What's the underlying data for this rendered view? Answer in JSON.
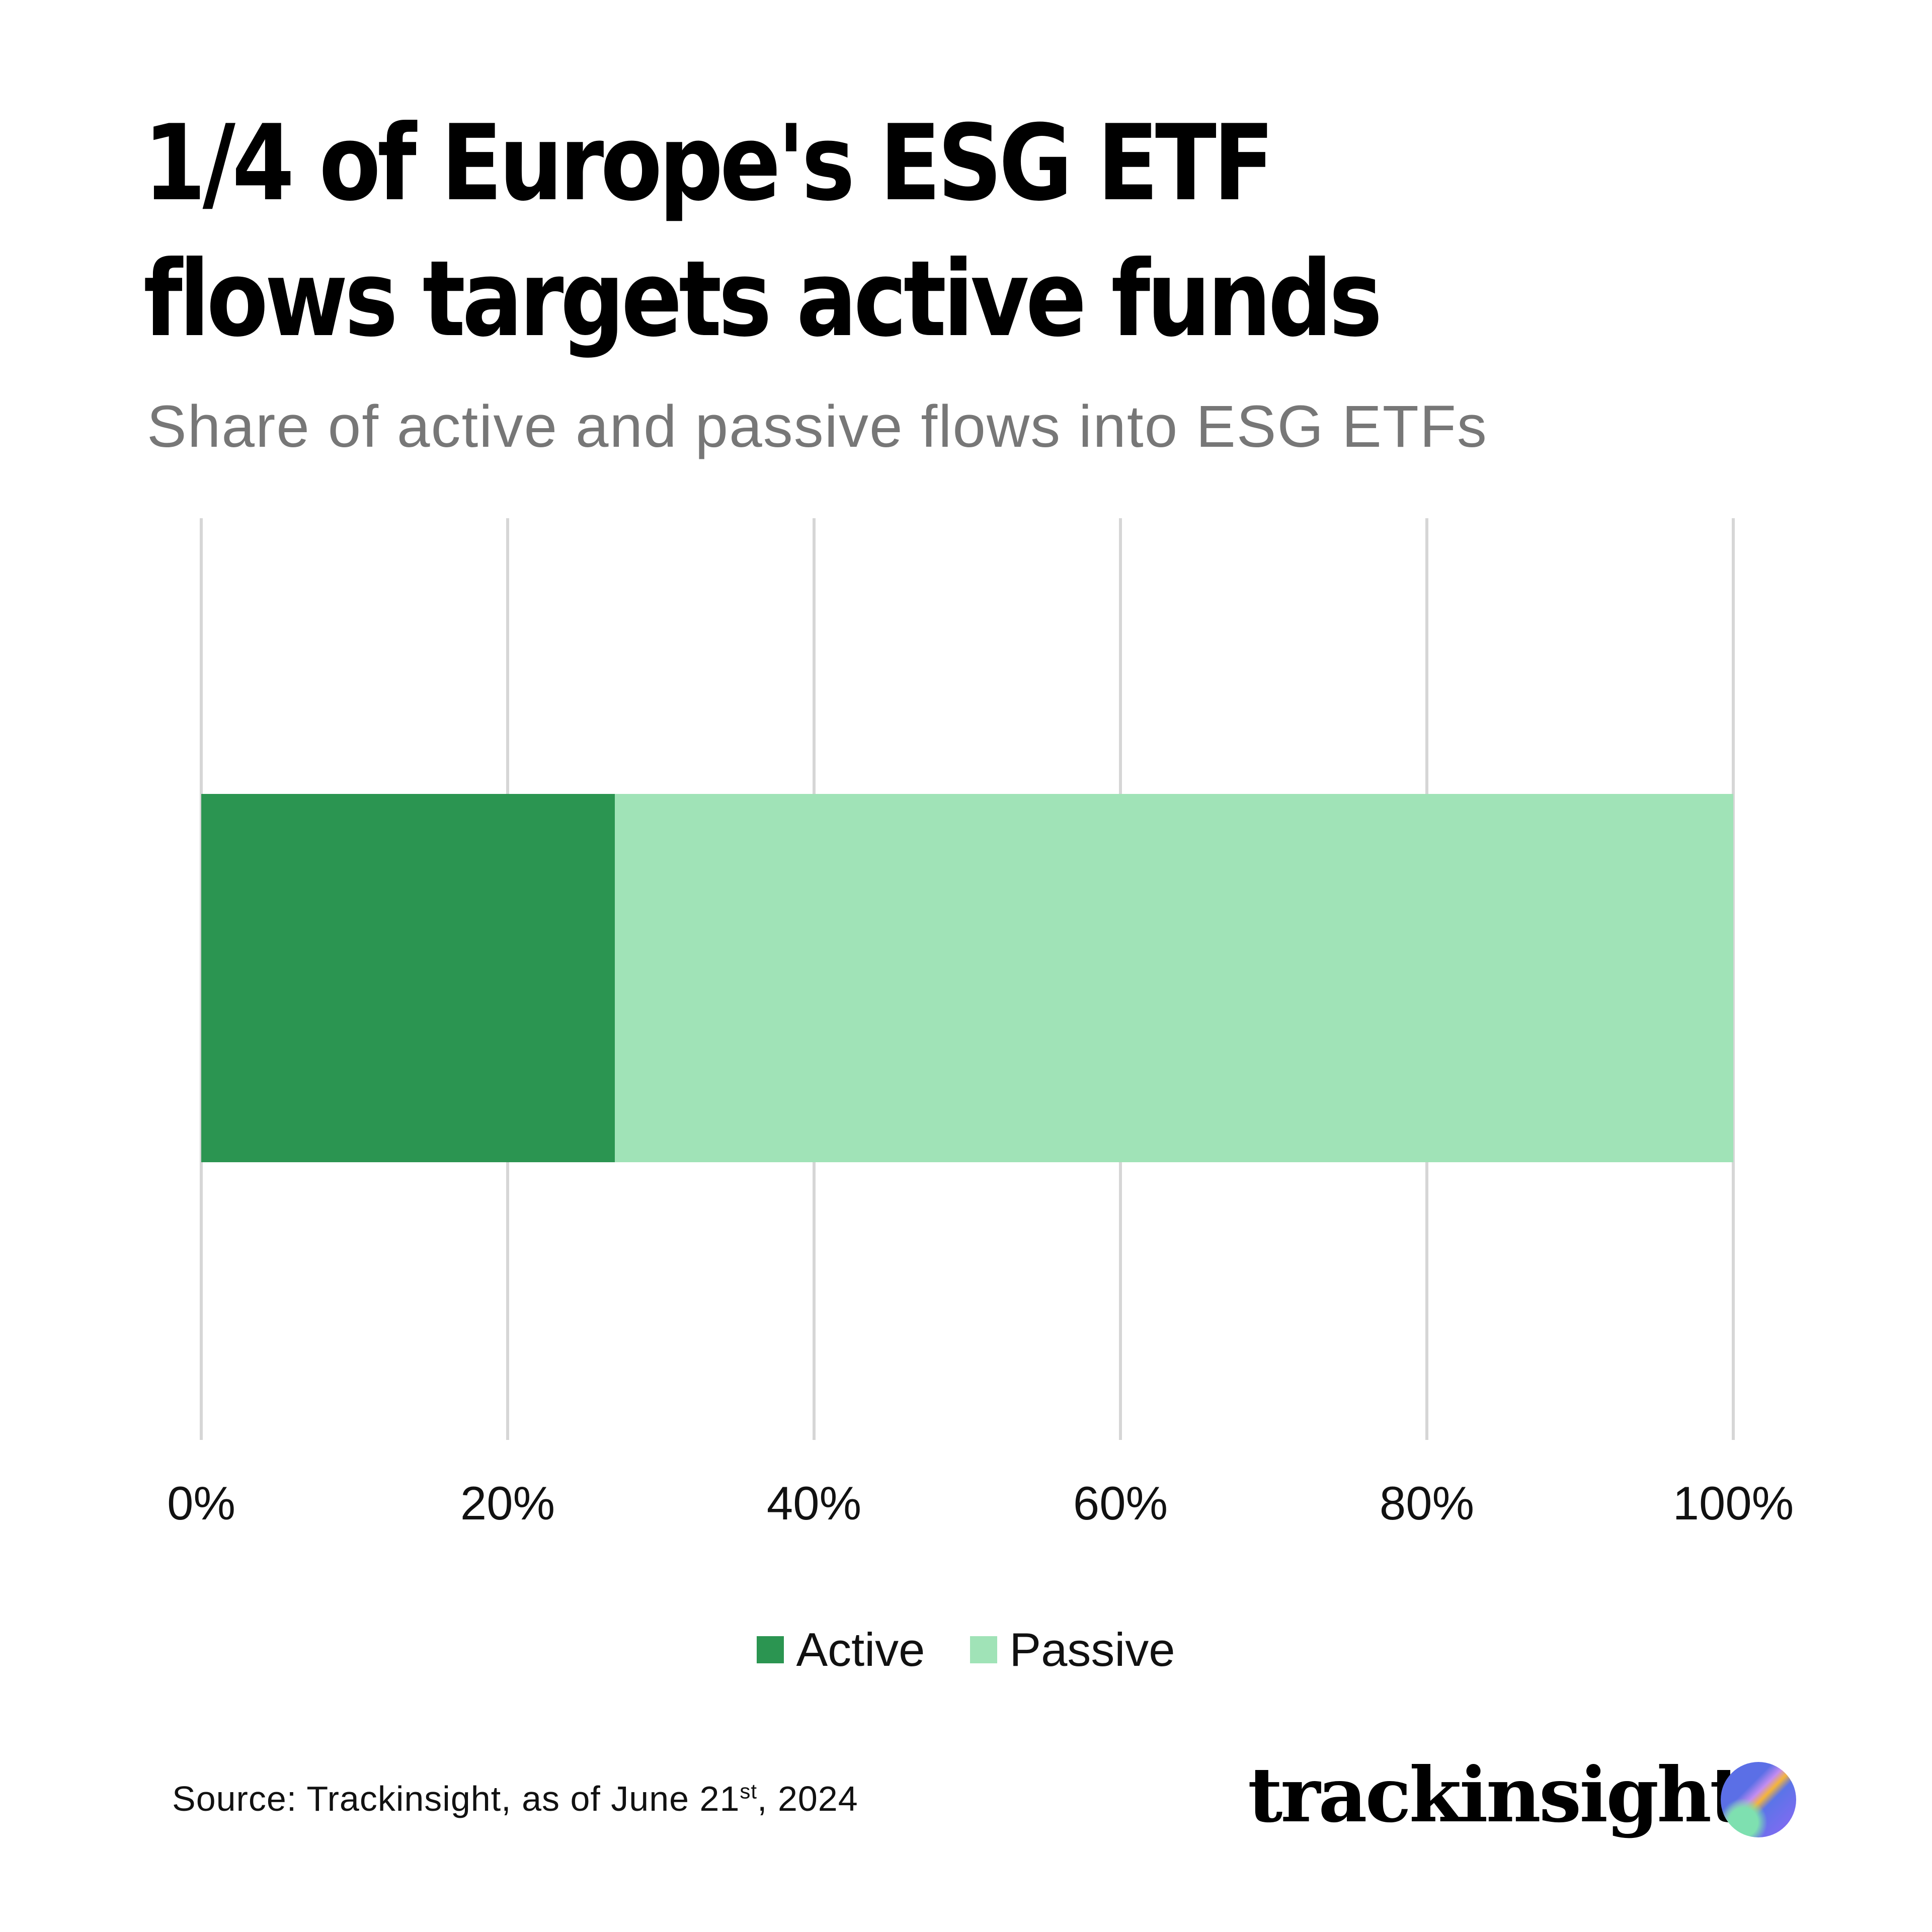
{
  "chart_data": {
    "type": "bar",
    "orientation": "horizontal",
    "stacked": true,
    "title": "1/4 of Europe's ESG ETF flows targets active funds",
    "title_lines": [
      "1/4 of Europe's ESG ETF",
      "flows targets active funds"
    ],
    "subtitle": "Share of active and passive flows into ESG ETFs",
    "categories": [
      ""
    ],
    "series": [
      {
        "name": "Active",
        "values": [
          27
        ],
        "color": "#2b9551"
      },
      {
        "name": "Passive",
        "values": [
          73
        ],
        "color": "#a0e3b7"
      }
    ],
    "xlim": [
      0,
      100
    ],
    "x_ticks": [
      "0%",
      "20%",
      "40%",
      "60%",
      "80%",
      "100%"
    ],
    "grid": true,
    "legend": "bottom-center"
  },
  "footer": {
    "source_prefix": "Source: Trackinsight, as of June 21",
    "source_sup": "st",
    "source_suffix": ", 2024",
    "logo_text": "trackinsight"
  }
}
